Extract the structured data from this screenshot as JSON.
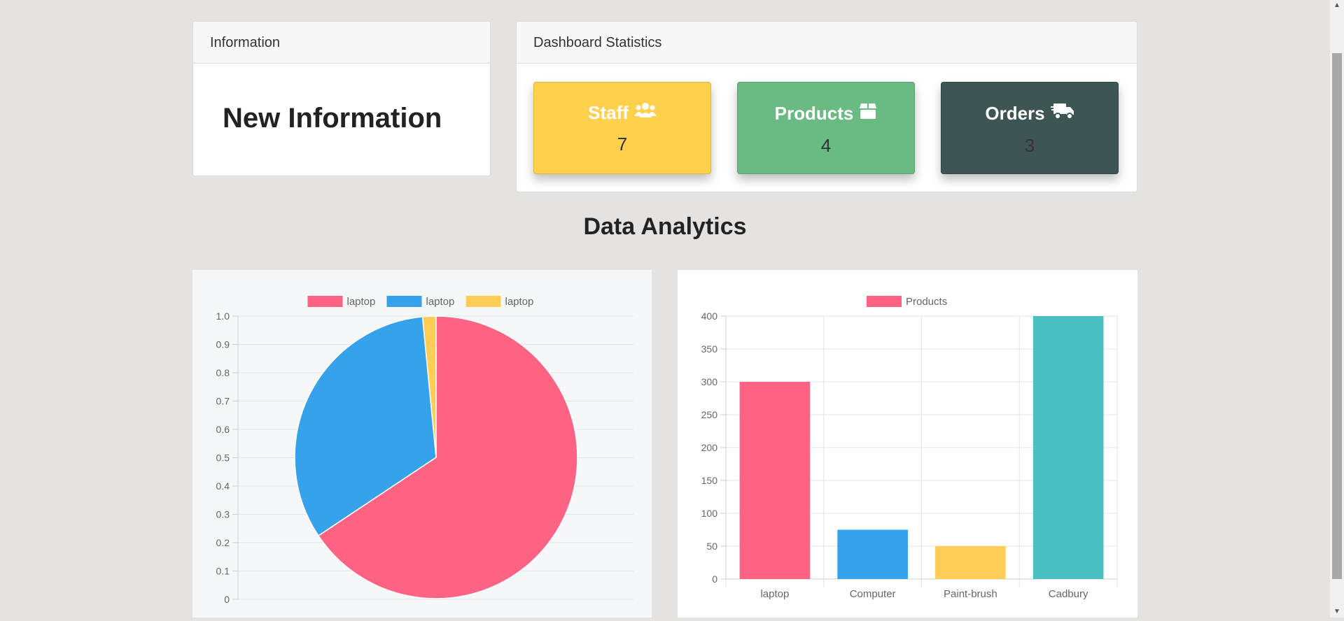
{
  "info": {
    "header": "Information",
    "body": "New Information"
  },
  "dashboard": {
    "header": "Dashboard Statistics",
    "stats": [
      {
        "label": "Staff",
        "count": "7",
        "icon": "users-icon",
        "color": "#ffd04c"
      },
      {
        "label": "Products",
        "count": "4",
        "icon": "box-icon",
        "color": "#6aba83"
      },
      {
        "label": "Orders",
        "count": "3",
        "icon": "shipping-truck-icon",
        "color": "#3d5654"
      }
    ]
  },
  "analytics_title": "Data Analytics",
  "chart_data": [
    {
      "type": "pie",
      "legend": [
        "laptop",
        "laptop",
        "laptop"
      ],
      "values": [
        300,
        150,
        7
      ],
      "colors": [
        "#ff6384",
        "#36a2eb",
        "#ffcd56"
      ],
      "yticks": [
        "1.0",
        "0.9",
        "0.8",
        "0.7",
        "0.6",
        "0.5",
        "0.4",
        "0.3",
        "0.2",
        "0.1",
        "0"
      ],
      "legend_position": "top"
    },
    {
      "type": "bar",
      "legend": [
        "Products"
      ],
      "categories": [
        "laptop",
        "Computer",
        "Paint-brush",
        "Cadbury"
      ],
      "values": [
        300,
        75,
        50,
        400
      ],
      "colors": [
        "#ff6384",
        "#36a2eb",
        "#ffcd56",
        "#4bc0c0"
      ],
      "ylim": [
        0,
        400
      ],
      "yticks": [
        "400",
        "350",
        "300",
        "250",
        "200",
        "150",
        "100",
        "50",
        "0"
      ],
      "legend_position": "top"
    }
  ]
}
